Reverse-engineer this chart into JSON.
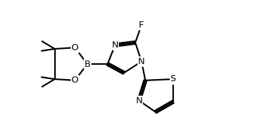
{
  "bg_color": "#ffffff",
  "line_color": "#000000",
  "line_width": 1.6,
  "font_size": 9.5,
  "figsize": [
    3.9,
    1.86
  ],
  "dpi": 100,
  "xlim": [
    0.0,
    7.8
  ],
  "ylim": [
    0.5,
    5.5
  ]
}
